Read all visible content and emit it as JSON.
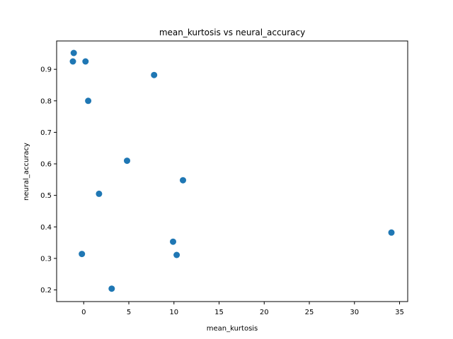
{
  "chart_data": {
    "type": "scatter",
    "title": "mean_kurtosis vs neural_accuracy",
    "xlabel": "mean_kurtosis",
    "ylabel": "neural_accuracy",
    "xlim": [
      -3.0,
      35.9
    ],
    "ylim": [
      0.163,
      0.99
    ],
    "xticks": [
      0,
      5,
      10,
      15,
      20,
      25,
      30,
      35
    ],
    "yticks": [
      0.2,
      0.3,
      0.4,
      0.5,
      0.6,
      0.7,
      0.8,
      0.9
    ],
    "grid": false,
    "legend": "none",
    "marker_color": "#1f77b4",
    "points": [
      {
        "x": -1.1,
        "y": 0.952
      },
      {
        "x": -1.2,
        "y": 0.925
      },
      {
        "x": 0.2,
        "y": 0.925
      },
      {
        "x": 0.5,
        "y": 0.8
      },
      {
        "x": 7.8,
        "y": 0.882
      },
      {
        "x": 4.8,
        "y": 0.61
      },
      {
        "x": 1.7,
        "y": 0.505
      },
      {
        "x": 11.0,
        "y": 0.548
      },
      {
        "x": -0.2,
        "y": 0.314
      },
      {
        "x": 3.1,
        "y": 0.204
      },
      {
        "x": 9.9,
        "y": 0.353
      },
      {
        "x": 10.3,
        "y": 0.311
      },
      {
        "x": 34.1,
        "y": 0.382
      }
    ]
  }
}
